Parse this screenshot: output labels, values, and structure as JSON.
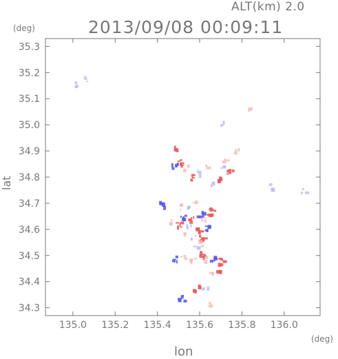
{
  "header": {
    "altitude_label": "ALT(km) 2.0",
    "timestamp": "2013/09/08 00:09:11"
  },
  "colors": {
    "axis": "#777777",
    "positive": "#e35b5b",
    "positive_light": "#f2b7b2",
    "negative": "#5b5be3",
    "negative_light": "#b8b8f0"
  },
  "chart_data": {
    "type": "heatmap",
    "title": "2013/09/08 00:09:11",
    "subtitle": "ALT(km) 2.0",
    "xlabel": "lon",
    "ylabel": "lat",
    "x_unit": "(deg)",
    "y_unit": "(deg)",
    "xlim": [
      134.87,
      136.17
    ],
    "ylim": [
      34.27,
      35.33
    ],
    "x_ticks": [
      135.0,
      135.2,
      135.4,
      135.6,
      135.8,
      136.0
    ],
    "x_tick_labels": [
      "135.0",
      "135.2",
      "135.4",
      "135.6",
      "135.8",
      "136.0"
    ],
    "y_ticks": [
      34.3,
      34.4,
      34.5,
      34.6,
      34.7,
      34.8,
      34.9,
      35.0,
      35.1,
      35.2,
      35.3
    ],
    "y_tick_labels": [
      "34.3",
      "34.4",
      "34.5",
      "34.6",
      "34.7",
      "34.8",
      "34.9",
      "35.0",
      "35.1",
      "35.2",
      "35.3"
    ],
    "grid": false,
    "echoes": [
      {
        "lon": 135.02,
        "lat": 35.16,
        "sign": "negative",
        "intensity": "weak"
      },
      {
        "lon": 135.05,
        "lat": 35.18,
        "sign": "negative",
        "intensity": "weak"
      },
      {
        "lon": 135.83,
        "lat": 35.06,
        "sign": "positive",
        "intensity": "weak"
      },
      {
        "lon": 135.71,
        "lat": 35.01,
        "sign": "negative",
        "intensity": "weak"
      },
      {
        "lon": 135.48,
        "lat": 34.91,
        "sign": "positive",
        "intensity": "strong"
      },
      {
        "lon": 135.5,
        "lat": 34.86,
        "sign": "positive",
        "intensity": "strong"
      },
      {
        "lon": 135.48,
        "lat": 34.85,
        "sign": "negative",
        "intensity": "strong"
      },
      {
        "lon": 135.53,
        "lat": 34.84,
        "sign": "positive",
        "intensity": "weak"
      },
      {
        "lon": 135.57,
        "lat": 34.8,
        "sign": "positive",
        "intensity": "strong"
      },
      {
        "lon": 135.6,
        "lat": 34.82,
        "sign": "negative",
        "intensity": "weak"
      },
      {
        "lon": 135.64,
        "lat": 34.85,
        "sign": "positive",
        "intensity": "weak"
      },
      {
        "lon": 135.68,
        "lat": 34.8,
        "sign": "positive",
        "intensity": "strong"
      },
      {
        "lon": 135.7,
        "lat": 34.85,
        "sign": "negative",
        "intensity": "weak"
      },
      {
        "lon": 135.72,
        "lat": 34.86,
        "sign": "positive",
        "intensity": "weak"
      },
      {
        "lon": 135.66,
        "lat": 34.78,
        "sign": "negative",
        "intensity": "weak"
      },
      {
        "lon": 135.74,
        "lat": 34.82,
        "sign": "positive",
        "intensity": "strong"
      },
      {
        "lon": 135.77,
        "lat": 34.9,
        "sign": "positive",
        "intensity": "weak"
      },
      {
        "lon": 135.94,
        "lat": 34.77,
        "sign": "negative",
        "intensity": "weak"
      },
      {
        "lon": 136.09,
        "lat": 34.75,
        "sign": "negative",
        "intensity": "weak"
      },
      {
        "lon": 135.42,
        "lat": 34.7,
        "sign": "negative",
        "intensity": "strong"
      },
      {
        "lon": 135.51,
        "lat": 34.69,
        "sign": "positive",
        "intensity": "weak"
      },
      {
        "lon": 135.54,
        "lat": 34.68,
        "sign": "negative",
        "intensity": "weak"
      },
      {
        "lon": 135.58,
        "lat": 34.7,
        "sign": "positive",
        "intensity": "weak"
      },
      {
        "lon": 135.64,
        "lat": 34.67,
        "sign": "positive",
        "intensity": "strong"
      },
      {
        "lon": 135.66,
        "lat": 34.68,
        "sign": "positive",
        "intensity": "strong"
      },
      {
        "lon": 135.52,
        "lat": 34.65,
        "sign": "negative",
        "intensity": "strong"
      },
      {
        "lon": 135.56,
        "lat": 34.64,
        "sign": "positive",
        "intensity": "strong"
      },
      {
        "lon": 135.6,
        "lat": 34.66,
        "sign": "negative",
        "intensity": "strong"
      },
      {
        "lon": 135.62,
        "lat": 34.64,
        "sign": "positive",
        "intensity": "weak"
      },
      {
        "lon": 135.5,
        "lat": 34.62,
        "sign": "positive",
        "intensity": "strong"
      },
      {
        "lon": 135.55,
        "lat": 34.61,
        "sign": "negative",
        "intensity": "weak"
      },
      {
        "lon": 135.59,
        "lat": 34.6,
        "sign": "positive",
        "intensity": "strong"
      },
      {
        "lon": 135.63,
        "lat": 34.61,
        "sign": "negative",
        "intensity": "strong"
      },
      {
        "lon": 135.45,
        "lat": 34.63,
        "sign": "positive",
        "intensity": "weak"
      },
      {
        "lon": 135.53,
        "lat": 34.58,
        "sign": "positive",
        "intensity": "weak"
      },
      {
        "lon": 135.57,
        "lat": 34.57,
        "sign": "negative",
        "intensity": "weak"
      },
      {
        "lon": 135.61,
        "lat": 34.57,
        "sign": "positive",
        "intensity": "strong"
      },
      {
        "lon": 135.58,
        "lat": 34.54,
        "sign": "negative",
        "intensity": "weak"
      },
      {
        "lon": 135.6,
        "lat": 34.55,
        "sign": "positive",
        "intensity": "weak"
      },
      {
        "lon": 135.48,
        "lat": 34.49,
        "sign": "negative",
        "intensity": "strong"
      },
      {
        "lon": 135.52,
        "lat": 34.49,
        "sign": "positive",
        "intensity": "weak"
      },
      {
        "lon": 135.56,
        "lat": 34.48,
        "sign": "positive",
        "intensity": "weak"
      },
      {
        "lon": 135.61,
        "lat": 34.51,
        "sign": "positive",
        "intensity": "strong"
      },
      {
        "lon": 135.63,
        "lat": 34.49,
        "sign": "positive",
        "intensity": "weak"
      },
      {
        "lon": 135.66,
        "lat": 34.49,
        "sign": "negative",
        "intensity": "strong"
      },
      {
        "lon": 135.7,
        "lat": 34.48,
        "sign": "positive",
        "intensity": "strong"
      },
      {
        "lon": 135.69,
        "lat": 34.44,
        "sign": "positive",
        "intensity": "strong"
      },
      {
        "lon": 135.66,
        "lat": 34.43,
        "sign": "positive",
        "intensity": "weak"
      },
      {
        "lon": 135.58,
        "lat": 34.38,
        "sign": "positive",
        "intensity": "strong"
      },
      {
        "lon": 135.62,
        "lat": 34.37,
        "sign": "negative",
        "intensity": "weak"
      },
      {
        "lon": 135.51,
        "lat": 34.34,
        "sign": "negative",
        "intensity": "strong"
      },
      {
        "lon": 135.65,
        "lat": 34.32,
        "sign": "positive",
        "intensity": "weak"
      }
    ]
  }
}
